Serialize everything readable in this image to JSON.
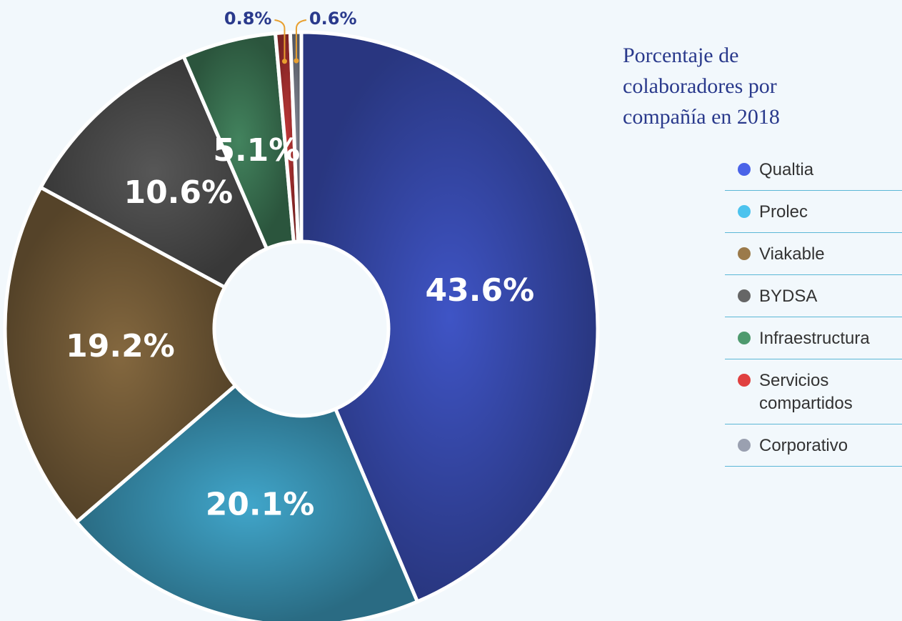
{
  "chart_data": {
    "type": "donut",
    "title": "Porcentaje de colaboradores por compañía en 2018",
    "categories": [
      "Qualtia",
      "Prolec",
      "Viakable",
      "BYDSA",
      "Infraestructura",
      "Servicios compartidos",
      "Corporativo"
    ],
    "values": [
      43.6,
      20.1,
      19.2,
      10.6,
      5.1,
      0.8,
      0.6
    ],
    "value_labels": [
      "43.6%",
      "20.1%",
      "19.2%",
      "10.6%",
      "5.1%",
      "0.8%",
      "0.6%"
    ],
    "colors": [
      "#4a63e8",
      "#4cc3ee",
      "#9b7a4a",
      "#666666",
      "#4e9a6e",
      "#e04040",
      "#9aa0b0"
    ],
    "legend": "right"
  }
}
